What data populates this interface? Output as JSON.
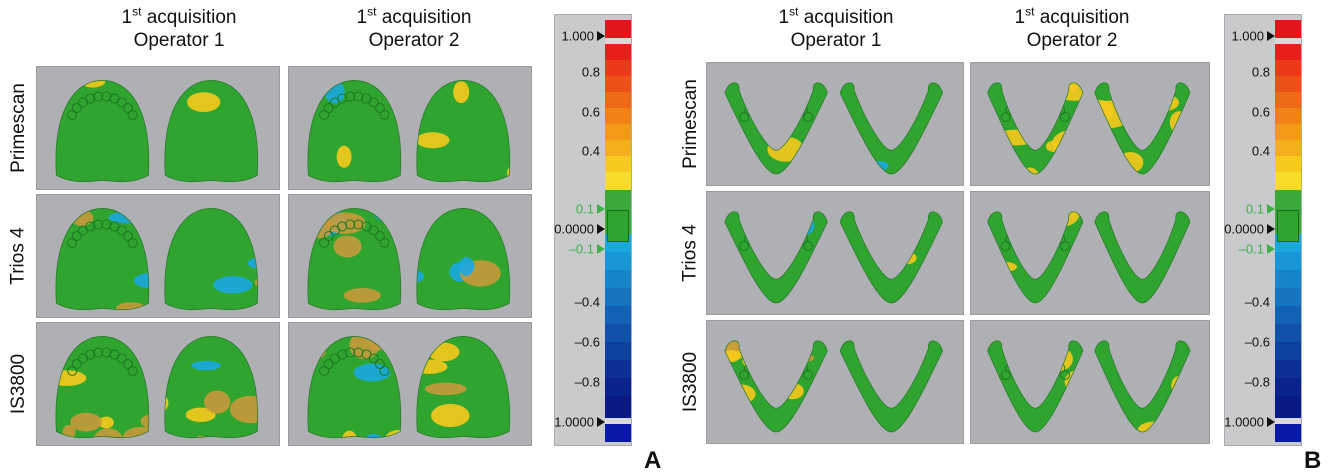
{
  "panels": [
    {
      "letter": "A",
      "columns": [
        {
          "line1_base": "1",
          "line1_sup": "st",
          "line1_rest": " acquisition",
          "line2": "Operator 1"
        },
        {
          "line1_base": "1",
          "line1_sup": "st",
          "line1_rest": " acquisition",
          "line2": "Operator 2"
        }
      ],
      "rows": [
        "Primescan",
        "Trios 4",
        "IS3800"
      ],
      "arch": "maxillary"
    },
    {
      "letter": "B",
      "columns": [
        {
          "line1_base": "1",
          "line1_sup": "st",
          "line1_rest": " acquisition",
          "line2": "Operator 1"
        },
        {
          "line1_base": "1",
          "line1_sup": "st",
          "line1_rest": " acquisition",
          "line2": "Operator 2"
        }
      ],
      "rows": [
        "Primescan",
        "Trios 4",
        "IS3800"
      ],
      "arch": "mandibular"
    }
  ],
  "color_scale": {
    "tick_labels": [
      "1.000",
      "0.8",
      "0.6",
      "0.4",
      "0.1",
      "0.0000",
      "–0.1",
      "–0.4",
      "–0.6",
      "–0.8",
      "1.0000"
    ],
    "green_labels": [
      "0.1",
      "–0.1"
    ],
    "colors": {
      "red": "#e3151b",
      "orange": "#f08a16",
      "yellow": "#f6c91c",
      "green": "#2fa52f",
      "light_blue": "#1aa7e0",
      "dark_blue": "#0a1aa8",
      "background": "#aeb0b3"
    }
  }
}
